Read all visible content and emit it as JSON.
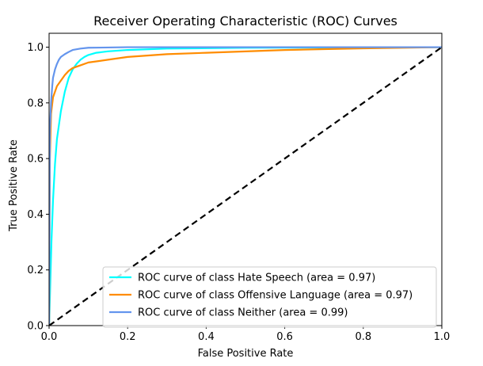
{
  "chart_data": {
    "type": "line",
    "title": "Receiver Operating Characteristic (ROC) Curves",
    "xlabel": "False Positive Rate",
    "ylabel": "True Positive Rate",
    "xlim": [
      0.0,
      1.0
    ],
    "ylim": [
      0.0,
      1.05
    ],
    "xticks": [
      "0.0",
      "0.2",
      "0.4",
      "0.6",
      "0.8",
      "1.0"
    ],
    "yticks": [
      "0.0",
      "0.2",
      "0.4",
      "0.6",
      "0.8",
      "1.0"
    ],
    "grid": false,
    "legend_position": "lower-right",
    "series": [
      {
        "name": "ROC curve of class Hate Speech (area = 0.97)",
        "color": "#00ffff",
        "x": [
          0.0,
          0.003,
          0.006,
          0.01,
          0.015,
          0.02,
          0.03,
          0.04,
          0.05,
          0.06,
          0.07,
          0.08,
          0.09,
          0.1,
          0.12,
          0.15,
          0.2,
          0.3,
          0.5,
          0.7,
          1.0
        ],
        "y": [
          0.0,
          0.15,
          0.3,
          0.45,
          0.58,
          0.67,
          0.77,
          0.84,
          0.89,
          0.92,
          0.94,
          0.955,
          0.965,
          0.972,
          0.98,
          0.985,
          0.99,
          0.995,
          0.998,
          0.999,
          1.0
        ]
      },
      {
        "name": "ROC curve of class Offensive Language (area = 0.97)",
        "color": "#ff8c00",
        "x": [
          0.0,
          0.002,
          0.005,
          0.01,
          0.02,
          0.03,
          0.04,
          0.05,
          0.06,
          0.08,
          0.1,
          0.15,
          0.2,
          0.3,
          0.4,
          0.5,
          0.6,
          0.7,
          0.8,
          0.9,
          1.0
        ],
        "y": [
          0.0,
          0.6,
          0.76,
          0.82,
          0.86,
          0.88,
          0.9,
          0.915,
          0.925,
          0.935,
          0.945,
          0.955,
          0.965,
          0.975,
          0.98,
          0.985,
          0.99,
          0.993,
          0.996,
          0.998,
          1.0
        ]
      },
      {
        "name": "ROC curve of class Neither (area = 0.99)",
        "color": "#6495ed",
        "x": [
          0.0,
          0.002,
          0.005,
          0.008,
          0.01,
          0.015,
          0.02,
          0.025,
          0.03,
          0.04,
          0.05,
          0.06,
          0.08,
          0.1,
          0.15,
          0.2,
          0.4,
          0.6,
          1.0
        ],
        "y": [
          0.0,
          0.7,
          0.8,
          0.86,
          0.89,
          0.92,
          0.94,
          0.955,
          0.965,
          0.975,
          0.983,
          0.99,
          0.995,
          0.998,
          0.999,
          1.0,
          1.0,
          1.0,
          1.0
        ]
      },
      {
        "color": "#000000",
        "style": "dashed",
        "x": [
          0.0,
          1.0
        ],
        "y": [
          0.0,
          1.0
        ]
      }
    ]
  }
}
